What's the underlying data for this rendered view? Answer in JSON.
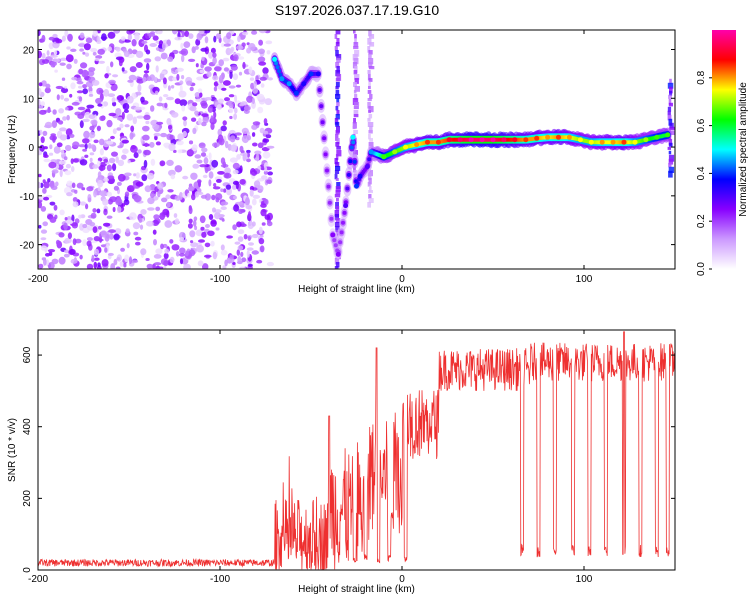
{
  "page_title": "S197.2026.037.17.19.G10",
  "chart_data": [
    {
      "type": "heatmap",
      "title": "S197.2026.037.17.19.G10",
      "xlabel": "Height of straight line (km)",
      "ylabel": "Frequency (Hz)",
      "xlim": [
        -200,
        150
      ],
      "ylim": [
        -25,
        24
      ],
      "x_ticks": [
        -200,
        -100,
        0,
        100
      ],
      "x_tick_labels": [
        "-200",
        "-100",
        "0",
        "100"
      ],
      "y_ticks": [
        -20,
        -10,
        0,
        10,
        20
      ],
      "y_tick_labels": [
        "-20",
        "-10",
        "0",
        "10",
        "20"
      ],
      "colorbar": {
        "label": "Normalized spectral amplitude",
        "range": [
          0,
          1
        ],
        "ticks": [
          0,
          0.2,
          0.4,
          0.6,
          0.8
        ],
        "tick_labels": [
          "0.0",
          "0.2",
          "0.4",
          "0.6",
          "0.8"
        ],
        "colors": [
          "#ffffff",
          "#cc99ff",
          "#8800ff",
          "#0000ff",
          "#00ffff",
          "#00ff00",
          "#ffff00",
          "#ff0000",
          "#ff00aa"
        ]
      },
      "noise_region": {
        "x_range": [
          -200,
          -72
        ],
        "y_range": [
          -25,
          24
        ],
        "amplitude_mean": 0.15
      },
      "signal_track": [
        {
          "x": -70,
          "y": 18,
          "a": 0.45
        },
        {
          "x": -66,
          "y": 14,
          "a": 0.4
        },
        {
          "x": -62,
          "y": 13,
          "a": 0.4
        },
        {
          "x": -58,
          "y": 11,
          "a": 0.35
        },
        {
          "x": -54,
          "y": 13,
          "a": 0.3
        },
        {
          "x": -50,
          "y": 15,
          "a": 0.35
        },
        {
          "x": -46,
          "y": 15,
          "a": 0.3
        },
        {
          "x": -38,
          "y": -18,
          "a": 0.2
        },
        {
          "x": -35,
          "y": -22,
          "a": 0.2
        },
        {
          "x": -31,
          "y": -12,
          "a": 0.25
        },
        {
          "x": -27,
          "y": 2,
          "a": 0.45
        },
        {
          "x": -25,
          "y": -8,
          "a": 0.35
        },
        {
          "x": -23,
          "y": -6,
          "a": 0.3
        },
        {
          "x": -19,
          "y": -4,
          "a": 0.25
        },
        {
          "x": -17,
          "y": -1,
          "a": 0.4
        },
        {
          "x": -10,
          "y": -2,
          "a": 0.6
        },
        {
          "x": -4,
          "y": -1,
          "a": 0.65
        },
        {
          "x": 2,
          "y": 0,
          "a": 0.7
        },
        {
          "x": 8,
          "y": 0.5,
          "a": 0.75
        },
        {
          "x": 14,
          "y": 1,
          "a": 0.8
        },
        {
          "x": 20,
          "y": 1,
          "a": 0.8
        },
        {
          "x": 26,
          "y": 1.5,
          "a": 0.85
        },
        {
          "x": 32,
          "y": 1.5,
          "a": 0.9
        },
        {
          "x": 38,
          "y": 1.5,
          "a": 0.95
        },
        {
          "x": 44,
          "y": 1.5,
          "a": 0.95
        },
        {
          "x": 50,
          "y": 1.5,
          "a": 0.95
        },
        {
          "x": 56,
          "y": 1.5,
          "a": 0.9
        },
        {
          "x": 62,
          "y": 1.5,
          "a": 0.85
        },
        {
          "x": 68,
          "y": 1.5,
          "a": 0.8
        },
        {
          "x": 74,
          "y": 1.8,
          "a": 0.8
        },
        {
          "x": 80,
          "y": 2,
          "a": 0.75
        },
        {
          "x": 86,
          "y": 2,
          "a": 0.8
        },
        {
          "x": 92,
          "y": 2,
          "a": 0.75
        },
        {
          "x": 98,
          "y": 1.5,
          "a": 0.7
        },
        {
          "x": 104,
          "y": 1,
          "a": 0.7
        },
        {
          "x": 110,
          "y": 1,
          "a": 0.75
        },
        {
          "x": 116,
          "y": 1,
          "a": 0.75
        },
        {
          "x": 122,
          "y": 1,
          "a": 0.8
        },
        {
          "x": 128,
          "y": 1,
          "a": 0.7
        },
        {
          "x": 134,
          "y": 1.5,
          "a": 0.65
        },
        {
          "x": 140,
          "y": 2,
          "a": 0.6
        },
        {
          "x": 146,
          "y": 2.5,
          "a": 0.6
        }
      ],
      "vertical_streaks": [
        {
          "x": -36,
          "y_range": [
            -25,
            24
          ],
          "a": 0.3
        },
        {
          "x": -26,
          "y_range": [
            -6,
            24
          ],
          "a": 0.18
        },
        {
          "x": -18,
          "y_range": [
            -12,
            24
          ],
          "a": 0.15
        },
        {
          "x": 147,
          "y_range": [
            -5,
            14
          ],
          "a": 0.3
        }
      ]
    },
    {
      "type": "line",
      "xlabel": "Height of straight line (km)",
      "ylabel": "SNR (10 * v/v)",
      "xlim": [
        -200,
        150
      ],
      "ylim": [
        0,
        670
      ],
      "x_ticks": [
        -200,
        -100,
        0,
        100
      ],
      "x_tick_labels": [
        "-200",
        "-100",
        "0",
        "100"
      ],
      "y_ticks": [
        0,
        200,
        400,
        600
      ],
      "y_tick_labels": [
        "0",
        "200",
        "400",
        "600"
      ],
      "line_color": "#ee3030",
      "baseline_segments": [
        {
          "x_range": [
            -200,
            -70
          ],
          "level": 20,
          "noise": 10
        },
        {
          "x_range": [
            -70,
            -40
          ],
          "level": 90,
          "noise": 110
        },
        {
          "x_range": [
            -40,
            -18
          ],
          "level": 170,
          "noise": 170
        },
        {
          "x_range": [
            -18,
            0
          ],
          "level": 260,
          "noise": 160
        },
        {
          "x_range": [
            0,
            20
          ],
          "level": 410,
          "noise": 100
        },
        {
          "x_range": [
            20,
            70
          ],
          "level": 560,
          "noise": 60
        },
        {
          "x_range": [
            70,
            150
          ],
          "level": 580,
          "noise": 55
        }
      ],
      "dropouts": [
        {
          "x": -26,
          "level": 30
        },
        {
          "x": -20,
          "level": 40
        },
        {
          "x": -13,
          "level": 30
        },
        {
          "x": -7,
          "level": 40
        },
        {
          "x": 2,
          "level": 40
        },
        {
          "x": 66,
          "level": 60
        },
        {
          "x": 75,
          "level": 60
        },
        {
          "x": 84,
          "level": 60
        },
        {
          "x": 94,
          "level": 60
        },
        {
          "x": 103,
          "level": 60
        },
        {
          "x": 112,
          "level": 60
        },
        {
          "x": 122,
          "level": 60
        },
        {
          "x": 131,
          "level": 60
        },
        {
          "x": 140,
          "level": 60
        },
        {
          "x": 146,
          "level": 60
        }
      ],
      "peaks": [
        {
          "x": -14,
          "value": 620
        },
        {
          "x": -40,
          "value": 430
        },
        {
          "x": 122,
          "value": 665
        }
      ]
    }
  ]
}
